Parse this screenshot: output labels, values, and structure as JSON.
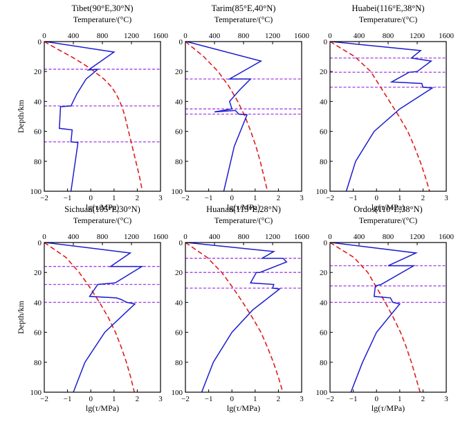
{
  "chart_data": [
    {
      "type": "line",
      "title": "Tibet(90°E,30°N)",
      "top_axis_label": "Temperature/(°C)",
      "top_axis_ticks": [
        0,
        400,
        800,
        1200,
        1600
      ],
      "xlabel": "lg(τ/MPa)",
      "ylabel": "Depth/km",
      "xlim": [
        -2,
        3
      ],
      "ylim": [
        100,
        0
      ],
      "tlim": [
        0,
        1600
      ],
      "x_ticks": [
        -2,
        -1,
        0,
        1,
        2,
        3
      ],
      "y_ticks": [
        0,
        20,
        40,
        60,
        80,
        100
      ],
      "layer_boundaries_km": [
        18.5,
        43,
        67
      ],
      "strength_profile": {
        "depth_km": [
          0,
          7,
          19,
          18.5,
          25,
          35,
          43,
          43.5,
          58,
          59,
          67,
          67.5,
          100
        ],
        "lg_tau": [
          -1.95,
          1.0,
          -0.1,
          0.3,
          -0.2,
          -0.6,
          -0.85,
          -1.3,
          -1.35,
          -0.8,
          -0.85,
          -0.55,
          -0.85
        ]
      },
      "geotherm": {
        "depth_km": [
          0,
          5,
          10,
          15,
          20,
          25,
          30,
          35,
          40,
          45,
          50,
          60,
          70,
          80,
          90,
          100
        ],
        "temperature_c": [
          0,
          180,
          370,
          540,
          690,
          820,
          920,
          990,
          1040,
          1080,
          1110,
          1160,
          1210,
          1260,
          1310,
          1350
        ]
      }
    },
    {
      "type": "line",
      "title": "Tarim(85°E,40°N)",
      "top_axis_label": "Temperature/(°C)",
      "top_axis_ticks": [
        0,
        400,
        800,
        1200,
        1600
      ],
      "xlabel": "lg(τ/MPa)",
      "ylabel": "",
      "xlim": [
        -2,
        3
      ],
      "ylim": [
        100,
        0
      ],
      "tlim": [
        0,
        1600
      ],
      "x_ticks": [
        -2,
        -1,
        0,
        1,
        2,
        3
      ],
      "y_ticks": [
        0,
        20,
        40,
        60,
        80,
        100
      ],
      "layer_boundaries_km": [
        25,
        45,
        48.5
      ],
      "strength_profile": {
        "depth_km": [
          0,
          13,
          25,
          25,
          32,
          40,
          45,
          47,
          46,
          48.5,
          49,
          70,
          100
        ],
        "lg_tau": [
          -1.95,
          1.25,
          -0.1,
          0.8,
          0.35,
          -0.1,
          0.0,
          -0.75,
          0.15,
          0.3,
          0.65,
          0.1,
          -0.35
        ]
      },
      "geotherm": {
        "depth_km": [
          0,
          10,
          20,
          30,
          40,
          50,
          60,
          70,
          80,
          90,
          100
        ],
        "temperature_c": [
          0,
          250,
          450,
          600,
          720,
          820,
          900,
          970,
          1030,
          1080,
          1130
        ]
      }
    },
    {
      "type": "line",
      "title": "Huabei(116°E,38°N)",
      "top_axis_label": "Temperature/(°C)",
      "top_axis_ticks": [
        0,
        400,
        800,
        1200,
        1600
      ],
      "xlabel": "lg(τ/MPa)",
      "ylabel": "",
      "xlim": [
        -2,
        3
      ],
      "ylim": [
        100,
        0
      ],
      "tlim": [
        0,
        1600
      ],
      "x_ticks": [
        -2,
        -1,
        0,
        1,
        2,
        3
      ],
      "y_ticks": [
        0,
        20,
        40,
        60,
        80,
        100
      ],
      "layer_boundaries_km": [
        11,
        20.5,
        30.5
      ],
      "strength_profile": {
        "depth_km": [
          0,
          6,
          11,
          13,
          20,
          20.5,
          27,
          28,
          30.5,
          31,
          45,
          60,
          80,
          100
        ],
        "lg_tau": [
          -1.95,
          1.9,
          1.5,
          2.35,
          1.75,
          1.4,
          0.65,
          1.95,
          2.0,
          2.4,
          1.0,
          -0.1,
          -0.9,
          -1.3
        ]
      },
      "geotherm": {
        "depth_km": [
          0,
          10,
          20,
          30,
          40,
          50,
          60,
          70,
          80,
          90,
          100
        ],
        "temperature_c": [
          0,
          340,
          560,
          690,
          820,
          950,
          1070,
          1160,
          1240,
          1310,
          1370
        ]
      }
    },
    {
      "type": "line",
      "title": "Sichuan(105°E,30°N)",
      "top_axis_label": "Temperature/(°C)",
      "top_axis_ticks": [
        0,
        400,
        800,
        1200,
        1600
      ],
      "xlabel": "lg(τ/MPa)",
      "ylabel": "Depth/km",
      "xlim": [
        -2,
        3
      ],
      "ylim": [
        100,
        0
      ],
      "tlim": [
        0,
        1600
      ],
      "x_ticks": [
        -2,
        -1,
        0,
        1,
        2,
        3
      ],
      "y_ticks": [
        0,
        20,
        40,
        60,
        80,
        100
      ],
      "layer_boundaries_km": [
        16,
        28,
        40
      ],
      "strength_profile": {
        "depth_km": [
          0,
          7,
          16,
          16,
          27,
          28,
          36,
          37,
          38,
          40,
          41,
          60,
          80,
          100
        ],
        "lg_tau": [
          -1.95,
          1.7,
          0.85,
          2.2,
          1.05,
          0.3,
          -0.05,
          1.1,
          1.3,
          1.55,
          1.9,
          0.6,
          -0.25,
          -0.75
        ]
      },
      "geotherm": {
        "depth_km": [
          0,
          5,
          10,
          20,
          28,
          40,
          50,
          60,
          70,
          80,
          90,
          100
        ],
        "temperature_c": [
          0,
          150,
          300,
          480,
          600,
          760,
          880,
          980,
          1060,
          1130,
          1190,
          1240
        ]
      }
    },
    {
      "type": "line",
      "title": "Huanan(113°E,28°N)",
      "top_axis_label": "Temperature/(°C)",
      "top_axis_ticks": [
        0,
        400,
        800,
        1200,
        1600
      ],
      "xlabel": "lg(τ/MPa)",
      "ylabel": "",
      "xlim": [
        -2,
        3
      ],
      "ylim": [
        100,
        0
      ],
      "tlim": [
        0,
        1600
      ],
      "x_ticks": [
        -2,
        -1,
        0,
        1,
        2,
        3
      ],
      "y_ticks": [
        0,
        20,
        40,
        60,
        80,
        100
      ],
      "layer_boundaries_km": [
        10.5,
        20,
        30.5
      ],
      "strength_profile": {
        "depth_km": [
          0,
          6,
          10.5,
          10.5,
          13,
          20,
          20,
          27,
          28,
          30.5,
          31,
          45,
          60,
          80,
          100
        ],
        "lg_tau": [
          -1.95,
          1.8,
          1.3,
          2.2,
          2.35,
          1.2,
          1.05,
          0.8,
          1.8,
          1.75,
          2.05,
          0.9,
          0.0,
          -0.8,
          -1.3
        ]
      },
      "geotherm": {
        "depth_km": [
          0,
          10,
          20,
          30,
          40,
          50,
          60,
          70,
          80,
          90,
          100
        ],
        "temperature_c": [
          0,
          300,
          500,
          650,
          790,
          920,
          1040,
          1130,
          1210,
          1280,
          1340
        ]
      }
    },
    {
      "type": "line",
      "title": "Ordos(110°E,38°N)",
      "top_axis_label": "Temperature/(°C)",
      "top_axis_ticks": [
        0,
        400,
        800,
        1200,
        1600
      ],
      "xlabel": "lg(τ/MPa)",
      "ylabel": "",
      "xlim": [
        -2,
        3
      ],
      "ylim": [
        100,
        0
      ],
      "tlim": [
        0,
        1600
      ],
      "x_ticks": [
        -2,
        -1,
        0,
        1,
        2,
        3
      ],
      "y_ticks": [
        0,
        20,
        40,
        60,
        80,
        100
      ],
      "layer_boundaries_km": [
        15.5,
        29,
        40
      ],
      "strength_profile": {
        "depth_km": [
          0,
          7,
          15.5,
          15.5,
          28,
          29,
          36,
          37,
          40,
          41,
          60,
          80,
          100
        ],
        "lg_tau": [
          -1.95,
          1.7,
          0.5,
          1.6,
          0.2,
          -0.05,
          -0.1,
          0.6,
          0.7,
          1.0,
          0.0,
          -0.6,
          -1.1
        ]
      },
      "geotherm": {
        "depth_km": [
          0,
          10,
          20,
          30,
          40,
          50,
          60,
          70,
          80,
          90,
          100
        ],
        "temperature_c": [
          0,
          330,
          520,
          640,
          760,
          870,
          970,
          1050,
          1120,
          1180,
          1240
        ]
      }
    }
  ]
}
